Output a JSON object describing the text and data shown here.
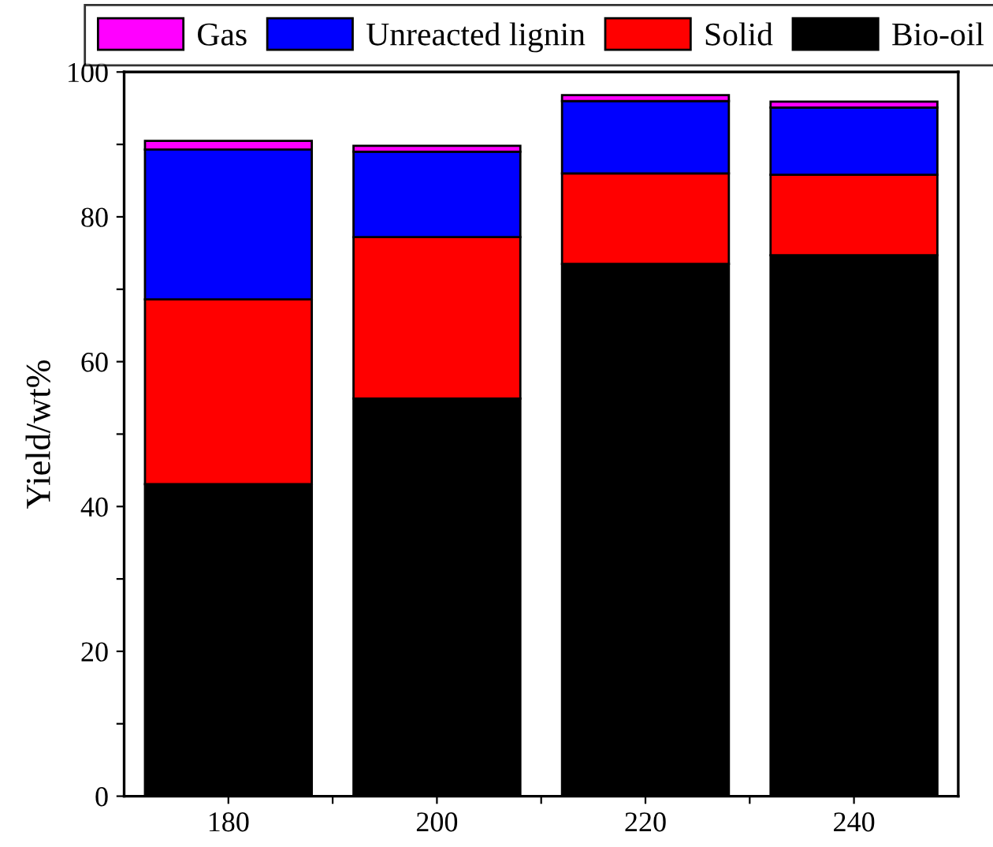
{
  "chart_data": {
    "type": "bar",
    "stacked": true,
    "ylabel": "Yield/wt%",
    "x": [
      180,
      200,
      220,
      240
    ],
    "series": [
      {
        "name": "Bio-oil",
        "color": "#000000",
        "values": [
          43.1,
          54.9,
          73.5,
          74.7
        ]
      },
      {
        "name": "Solid",
        "color": "#ff0000",
        "values": [
          25.5,
          22.3,
          12.5,
          11.1
        ]
      },
      {
        "name": "Unreacted lignin",
        "color": "#0000ff",
        "values": [
          20.7,
          11.8,
          10.0,
          9.3
        ]
      },
      {
        "name": "Gas",
        "color": "#ff00ff",
        "values": [
          1.2,
          0.8,
          0.8,
          0.8
        ]
      }
    ],
    "xlim": [
      170,
      250
    ],
    "xticks": [
      180,
      {
        "value": 190,
        "label": null
      },
      200,
      {
        "value": 210,
        "label": null
      },
      220,
      {
        "value": 230,
        "label": null
      },
      240
    ],
    "ylim": [
      0,
      100
    ],
    "yticks": [
      0,
      {
        "value": 10,
        "label": null
      },
      20,
      {
        "value": 30,
        "label": null
      },
      40,
      {
        "value": 50,
        "label": null
      },
      60,
      {
        "value": 70,
        "label": null
      },
      80,
      {
        "value": 90,
        "label": null
      },
      100
    ],
    "legend": "top",
    "grid": false
  }
}
